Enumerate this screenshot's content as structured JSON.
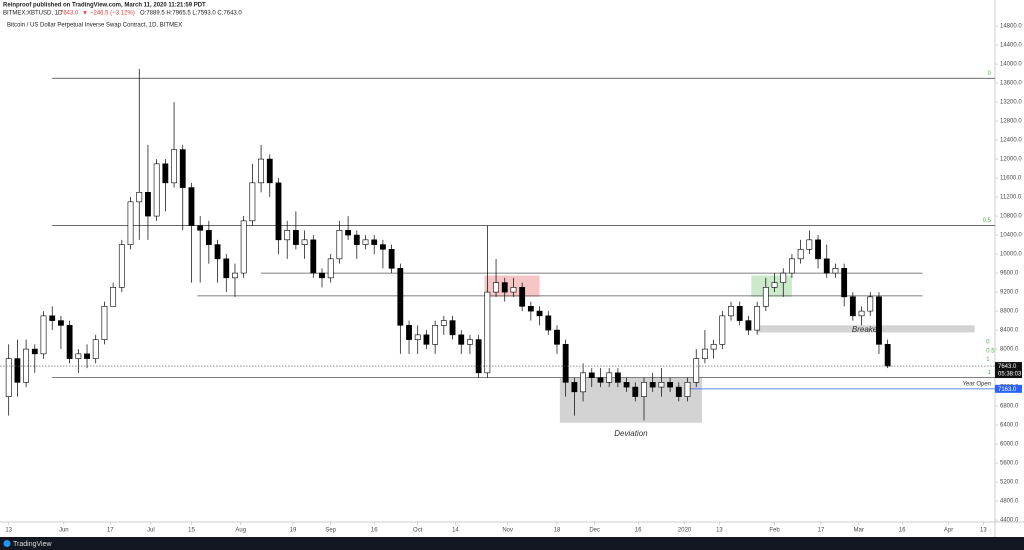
{
  "header": {
    "publisher": "Reinproof published on TradingView.com, March 11, 2020 11:21:59 PDT",
    "symbol": "BITMEX:XBTUSD, 1D",
    "last": "7643.0",
    "arrow": "▼",
    "change": "−246.5 (−3.12%)",
    "ohlc": "O:7889.5 H:7965.5 L:7593.0 C:7643.0"
  },
  "footer": {
    "brand": "TradingView"
  },
  "chart_data": {
    "type": "candlestick",
    "title": "Bitcoin / US Dollar Perpetual Inverse Swap Contract, 1D, BITMEX",
    "x": [
      "2019-05-13",
      "2019-05-16",
      "2019-05-19",
      "2019-05-22",
      "2019-05-25",
      "2019-05-28",
      "2019-05-31",
      "2019-06-03",
      "2019-06-06",
      "2019-06-09",
      "2019-06-12",
      "2019-06-15",
      "2019-06-18",
      "2019-06-21",
      "2019-06-24",
      "2019-06-27",
      "2019-06-30",
      "2019-07-03",
      "2019-07-06",
      "2019-07-09",
      "2019-07-12",
      "2019-07-15",
      "2019-07-18",
      "2019-07-21",
      "2019-07-24",
      "2019-07-27",
      "2019-07-30",
      "2019-08-02",
      "2019-08-05",
      "2019-08-08",
      "2019-08-11",
      "2019-08-14",
      "2019-08-17",
      "2019-08-20",
      "2019-08-23",
      "2019-08-26",
      "2019-08-29",
      "2019-09-01",
      "2019-09-04",
      "2019-09-07",
      "2019-09-10",
      "2019-09-13",
      "2019-09-16",
      "2019-09-19",
      "2019-09-22",
      "2019-09-25",
      "2019-09-28",
      "2019-10-01",
      "2019-10-04",
      "2019-10-07",
      "2019-10-10",
      "2019-10-13",
      "2019-10-16",
      "2019-10-19",
      "2019-10-22",
      "2019-10-25",
      "2019-10-28",
      "2019-10-31",
      "2019-11-03",
      "2019-11-06",
      "2019-11-09",
      "2019-11-12",
      "2019-11-15",
      "2019-11-18",
      "2019-11-21",
      "2019-11-24",
      "2019-11-27",
      "2019-11-30",
      "2019-12-03",
      "2019-12-06",
      "2019-12-09",
      "2019-12-12",
      "2019-12-15",
      "2019-12-18",
      "2019-12-21",
      "2019-12-24",
      "2019-12-27",
      "2019-12-30",
      "2020-01-02",
      "2020-01-05",
      "2020-01-08",
      "2020-01-11",
      "2020-01-14",
      "2020-01-17",
      "2020-01-20",
      "2020-01-23",
      "2020-01-26",
      "2020-01-29",
      "2020-02-01",
      "2020-02-04",
      "2020-02-07",
      "2020-02-10",
      "2020-02-13",
      "2020-02-16",
      "2020-02-19",
      "2020-02-22",
      "2020-02-25",
      "2020-02-28",
      "2020-03-02",
      "2020-03-05",
      "2020-03-08",
      "2020-03-11"
    ],
    "open": [
      7000,
      7800,
      7300,
      8000,
      7900,
      8700,
      8600,
      8500,
      7800,
      7900,
      7800,
      8200,
      8900,
      9300,
      10200,
      11100,
      11300,
      10800,
      11900,
      11500,
      12200,
      11400,
      10600,
      10500,
      10200,
      9900,
      9500,
      9600,
      10700,
      11500,
      12000,
      11500,
      10300,
      10500,
      10200,
      10300,
      9600,
      9500,
      9900,
      10500,
      10400,
      10200,
      10300,
      10200,
      10100,
      9700,
      8500,
      8200,
      8300,
      8100,
      8500,
      8600,
      8300,
      8100,
      8200,
      7500,
      9200,
      9400,
      9200,
      9300,
      8900,
      8800,
      8700,
      8400,
      8100,
      7300,
      7100,
      7500,
      7400,
      7300,
      7500,
      7300,
      7200,
      7000,
      7300,
      7200,
      7300,
      7200,
      7000,
      7300,
      7800,
      8000,
      8100,
      8700,
      8900,
      8600,
      8400,
      8900,
      9300,
      9400,
      9600,
      9900,
      10100,
      10300,
      9900,
      9600,
      9700,
      9100,
      8700,
      8800,
      9100,
      8100
    ],
    "high": [
      8100,
      8200,
      8200,
      8100,
      8800,
      8900,
      8700,
      8600,
      8000,
      8100,
      8300,
      9000,
      9400,
      10300,
      11200,
      13900,
      12300,
      12000,
      12000,
      13200,
      12300,
      11500,
      10800,
      10700,
      10300,
      10000,
      9800,
      10800,
      11900,
      12300,
      12100,
      11600,
      10700,
      10900,
      10500,
      10400,
      9700,
      10000,
      10700,
      10800,
      10500,
      10400,
      10400,
      10300,
      10200,
      9800,
      8600,
      8500,
      8400,
      8600,
      8700,
      8700,
      8400,
      8300,
      8300,
      10600,
      9900,
      9500,
      9500,
      9400,
      9000,
      8900,
      8800,
      8500,
      8200,
      7400,
      7700,
      7600,
      7600,
      7600,
      7600,
      7400,
      7300,
      7400,
      7500,
      7600,
      7400,
      7300,
      7400,
      8000,
      8400,
      8200,
      8800,
      9000,
      9000,
      8700,
      9000,
      9500,
      9600,
      9700,
      10000,
      10300,
      10500,
      10400,
      10200,
      9800,
      9800,
      9200,
      8900,
      9200,
      9200,
      8200
    ],
    "low": [
      6600,
      7000,
      7200,
      7500,
      7800,
      8400,
      8000,
      7700,
      7500,
      7600,
      7700,
      8100,
      8900,
      9200,
      10100,
      10300,
      10300,
      10700,
      10900,
      11400,
      10500,
      9400,
      9400,
      9800,
      9400,
      9200,
      9100,
      9500,
      10600,
      11300,
      11200,
      10000,
      9900,
      10100,
      9900,
      9500,
      9300,
      9400,
      9800,
      10300,
      9900,
      10100,
      10000,
      9700,
      9600,
      7900,
      7900,
      7900,
      8000,
      7900,
      8300,
      8200,
      7900,
      7900,
      7400,
      7400,
      9100,
      9000,
      9100,
      8800,
      8600,
      8500,
      8300,
      7900,
      7000,
      6600,
      6900,
      7200,
      7200,
      7200,
      7200,
      7100,
      6900,
      6500,
      7100,
      7000,
      7100,
      6900,
      6900,
      7200,
      7700,
      7800,
      8000,
      8600,
      8500,
      8300,
      8300,
      8800,
      9200,
      9100,
      9500,
      9800,
      10000,
      9700,
      9500,
      9500,
      8900,
      8600,
      8500,
      8700,
      7900,
      7600
    ],
    "close": [
      7800,
      7300,
      8000,
      7900,
      8700,
      8600,
      8500,
      7800,
      7900,
      7800,
      8200,
      8900,
      9300,
      10200,
      11100,
      11300,
      10800,
      11900,
      11500,
      12200,
      11400,
      10600,
      10500,
      10200,
      9900,
      9500,
      9600,
      10700,
      11500,
      12000,
      11500,
      10300,
      10500,
      10200,
      10300,
      9600,
      9500,
      9900,
      10500,
      10400,
      10200,
      10300,
      10200,
      10100,
      9700,
      8500,
      8200,
      8300,
      8100,
      8500,
      8600,
      8300,
      8100,
      8200,
      7500,
      9200,
      9400,
      9200,
      9300,
      8900,
      8800,
      8700,
      8400,
      8100,
      7300,
      7100,
      7500,
      7400,
      7300,
      7500,
      7300,
      7200,
      7000,
      7300,
      7200,
      7300,
      7200,
      7000,
      7300,
      7800,
      8000,
      8100,
      8700,
      8900,
      8600,
      8400,
      8900,
      9300,
      9400,
      9600,
      9900,
      10100,
      10300,
      9900,
      9600,
      9700,
      9100,
      8700,
      8800,
      9100,
      8100,
      7643
    ],
    "up_color": "#ffffff",
    "down_color": "#000000",
    "last_label": "7643.0",
    "countdown": "05:38:03",
    "xlim": [
      "2019-05-10",
      "2020-04-17"
    ],
    "xticks": [
      {
        "value": "2019-05-13",
        "label": "13"
      },
      {
        "value": "2019-06-01",
        "label": "Jun"
      },
      {
        "value": "2019-06-17",
        "label": "17"
      },
      {
        "value": "2019-07-01",
        "label": "Jul"
      },
      {
        "value": "2019-07-15",
        "label": "15"
      },
      {
        "value": "2019-08-01",
        "label": "Aug"
      },
      {
        "value": "2019-08-19",
        "label": "19"
      },
      {
        "value": "2019-09-01",
        "label": "Sep"
      },
      {
        "value": "2019-09-16",
        "label": "16"
      },
      {
        "value": "2019-10-01",
        "label": "Oct"
      },
      {
        "value": "2019-10-14",
        "label": "14"
      },
      {
        "value": "2019-11-01",
        "label": "Nov"
      },
      {
        "value": "2019-11-18",
        "label": "18"
      },
      {
        "value": "2019-12-01",
        "label": "Dec"
      },
      {
        "value": "2019-12-16",
        "label": "16"
      },
      {
        "value": "2020-01-01",
        "label": "2020"
      },
      {
        "value": "2020-01-13",
        "label": "13"
      },
      {
        "value": "2020-02-01",
        "label": "Feb"
      },
      {
        "value": "2020-02-17",
        "label": "17"
      },
      {
        "value": "2020-03-01",
        "label": "Mar"
      },
      {
        "value": "2020-03-16",
        "label": "16"
      },
      {
        "value": "2020-04-01",
        "label": "Apr"
      },
      {
        "value": "2020-04-13",
        "label": "13"
      }
    ],
    "ylim": [
      4360,
      14970
    ],
    "yticks": [
      {
        "value": 4400,
        "label": "4400.0"
      },
      {
        "value": 4800,
        "label": "4800.0"
      },
      {
        "value": 5200,
        "label": "5200.0"
      },
      {
        "value": 5600,
        "label": "5600.0"
      },
      {
        "value": 6000,
        "label": "6000.0"
      },
      {
        "value": 6400,
        "label": "6400.0"
      },
      {
        "value": 6800,
        "label": "6800.0"
      },
      {
        "value": 7200,
        "label": "7200.0"
      },
      {
        "value": 7600,
        "label": "7600.0"
      },
      {
        "value": 8000,
        "label": "8000.0"
      },
      {
        "value": 8400,
        "label": "8400.0"
      },
      {
        "value": 8800,
        "label": "8800.0"
      },
      {
        "value": 9200,
        "label": "9200.0"
      },
      {
        "value": 9600,
        "label": "9600.0"
      },
      {
        "value": 10000,
        "label": "10000.0"
      },
      {
        "value": 10400,
        "label": "10400.0"
      },
      {
        "value": 10800,
        "label": "10800.0"
      },
      {
        "value": 11200,
        "label": "11200.0"
      },
      {
        "value": 11600,
        "label": "11600.0"
      },
      {
        "value": 12000,
        "label": "12000.0"
      },
      {
        "value": 12400,
        "label": "12400.0"
      },
      {
        "value": 12800,
        "label": "12800.0"
      },
      {
        "value": 13200,
        "label": "13200.0"
      },
      {
        "value": 13600,
        "label": "13600.0"
      },
      {
        "value": 14000,
        "label": "14000.0"
      },
      {
        "value": 14400,
        "label": "14400.0"
      },
      {
        "value": 14800,
        "label": "14800.0"
      }
    ],
    "grid": false,
    "levels": [
      {
        "value": 13700,
        "from": "2019-05-28",
        "label": "0",
        "color": "#555555"
      },
      {
        "value": 10600,
        "from": "2019-05-28",
        "label": "0.5",
        "color": "#555555"
      },
      {
        "value": 7400,
        "from": "2019-05-28",
        "label": "1",
        "color": "#555555"
      },
      {
        "value": 9600,
        "from": "2019-08-08",
        "to": "2020-03-23",
        "color": "#555555"
      },
      {
        "value": 9120,
        "from": "2019-07-17",
        "to": "2020-03-23",
        "color": "#555555"
      },
      {
        "value": 7163,
        "from": "2020-01-02",
        "label": "Year Open",
        "tag": "7163.0",
        "color": "#2962ff"
      }
    ],
    "zones": [
      {
        "from": "2019-10-24",
        "to": "2019-11-12",
        "low": 9100,
        "high": 9550,
        "color": "#f4b8b8"
      },
      {
        "from": "2020-01-24",
        "to": "2020-02-07",
        "low": 9100,
        "high": 9550,
        "color": "#bfe3bf"
      },
      {
        "from": "2020-01-26",
        "to": "2020-04-10",
        "low": 8350,
        "high": 8500,
        "color": "#c8c8c8",
        "label": "Breaker"
      },
      {
        "from": "2019-11-19",
        "to": "2020-01-07",
        "low": 6450,
        "high": 7400,
        "color": "#c8c8c8",
        "label": "Deviation"
      }
    ],
    "annotations": [
      {
        "text": "0",
        "x": "2020-04-14",
        "y": 8150
      },
      {
        "text": "0.5",
        "x": "2020-04-14",
        "y": 7960
      },
      {
        "text": "1",
        "x": "2020-04-14",
        "y": 7780
      }
    ]
  }
}
